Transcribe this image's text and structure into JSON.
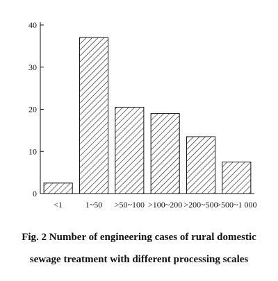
{
  "chart_data": {
    "type": "bar",
    "categories": [
      "<1",
      "1~50",
      ">50~100",
      ">100~200",
      ">200~500",
      ">500~1 000"
    ],
    "values": [
      2.5,
      37,
      20.5,
      19,
      13.5,
      7.5
    ],
    "yticks": [
      "0",
      "10",
      "20",
      "30",
      "40"
    ],
    "ylim": [
      0,
      40
    ],
    "title": "",
    "xlabel": "",
    "ylabel": "",
    "grid": false,
    "bar_fill": "diagonal-hatch",
    "colors": {
      "stroke": "#111111",
      "background": "#ffffff"
    }
  },
  "caption": {
    "line1": "Fig. 2   Number of engineering cases of rural domestic",
    "line2": "sewage treatment with different processing scales"
  }
}
